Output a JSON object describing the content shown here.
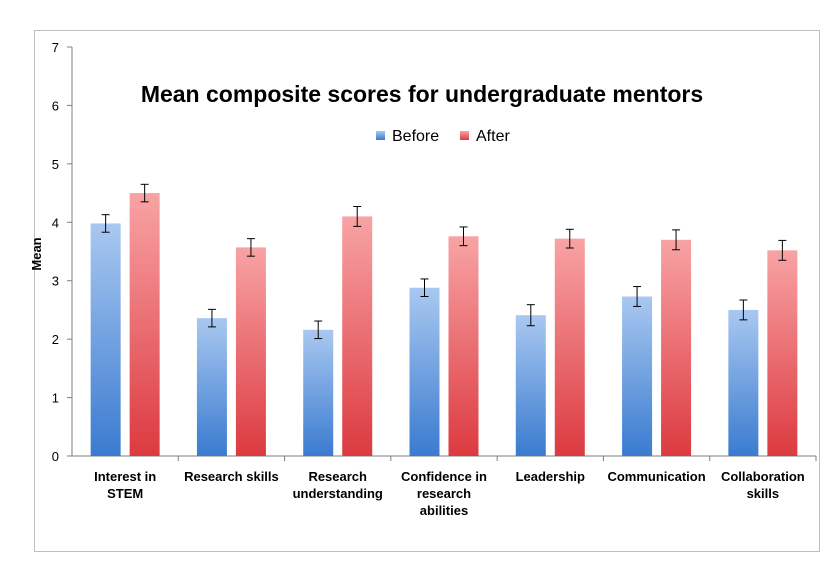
{
  "chart_data": {
    "type": "bar",
    "title": "Mean composite scores for undergraduate mentors",
    "ylabel": "Mean",
    "xlabel": "",
    "ylim": [
      0,
      7
    ],
    "yticks": [
      0,
      1,
      2,
      3,
      4,
      5,
      6,
      7
    ],
    "grid": false,
    "legend_position": "top-center",
    "categories": [
      [
        "Interest in",
        "STEM"
      ],
      [
        "Research skills"
      ],
      [
        "Research",
        "understanding"
      ],
      [
        "Confidence in",
        "research",
        "abilities"
      ],
      [
        "Leadership"
      ],
      [
        "Communication"
      ],
      [
        "Collaboration",
        "skills"
      ]
    ],
    "series": [
      {
        "name": "Before",
        "color": "#4a86d4",
        "values": [
          3.98,
          2.36,
          2.16,
          2.88,
          2.41,
          2.73,
          2.5
        ],
        "error": [
          0.15,
          0.15,
          0.15,
          0.15,
          0.18,
          0.17,
          0.17
        ]
      },
      {
        "name": "After",
        "color": "#e0454a",
        "values": [
          4.5,
          3.57,
          4.1,
          3.76,
          3.72,
          3.7,
          3.52
        ],
        "error": [
          0.15,
          0.15,
          0.17,
          0.16,
          0.16,
          0.17,
          0.17
        ]
      }
    ]
  }
}
